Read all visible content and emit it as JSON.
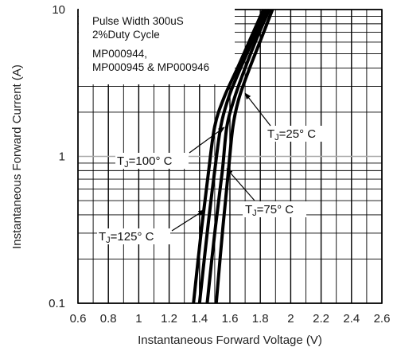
{
  "chart_data": {
    "type": "line",
    "xlabel": "Instantaneous Forward Voltage (V)",
    "ylabel": "Instantaneous Forward Current (A)",
    "xlim": [
      0.6,
      2.6
    ],
    "ylim": [
      0.1,
      10
    ],
    "y_scale": "log",
    "grid": true,
    "x_ticks": [
      "0.6",
      "0.8",
      "1",
      "1.2",
      "1.4",
      "1.6",
      "1.8",
      "2",
      "2.2",
      "2.4",
      "2.6"
    ],
    "y_ticks": [
      "0.1",
      "1",
      "10"
    ],
    "notes": [
      "Pulse Width 300uS",
      "2%Duty Cycle",
      "MP000944,",
      "MP000945 & MP000946"
    ],
    "series": [
      {
        "name": "TJ=125° C",
        "label_base": "T",
        "label_sub": "J",
        "label_rest": "=125° C",
        "x": [
          1.36,
          1.41,
          1.46,
          1.5,
          1.56,
          1.65,
          1.74,
          1.82
        ],
        "y": [
          0.1,
          0.3,
          0.8,
          1.6,
          2.5,
          4.0,
          6.5,
          10
        ]
      },
      {
        "name": "TJ=100° C",
        "label_base": "T",
        "label_sub": "J",
        "label_rest": "=100° C",
        "x": [
          1.4,
          1.45,
          1.5,
          1.54,
          1.59,
          1.67,
          1.76,
          1.84
        ],
        "y": [
          0.1,
          0.3,
          0.8,
          1.6,
          2.5,
          4.0,
          6.5,
          10
        ]
      },
      {
        "name": "TJ=75° C",
        "label_base": "T",
        "label_sub": "J",
        "label_rest": "=75° C",
        "x": [
          1.45,
          1.5,
          1.55,
          1.58,
          1.63,
          1.7,
          1.78,
          1.86
        ],
        "y": [
          0.1,
          0.3,
          0.8,
          1.6,
          2.5,
          4.0,
          6.5,
          10
        ]
      },
      {
        "name": "TJ=25° C",
        "label_base": "T",
        "label_sub": "J",
        "label_rest": "=25° C",
        "x": [
          1.51,
          1.55,
          1.59,
          1.62,
          1.66,
          1.73,
          1.81,
          1.88
        ],
        "y": [
          0.1,
          0.3,
          0.8,
          1.6,
          2.5,
          4.0,
          6.5,
          10
        ]
      }
    ]
  }
}
